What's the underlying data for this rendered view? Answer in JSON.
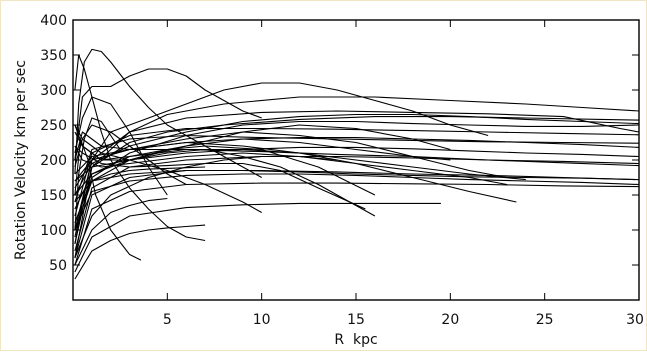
{
  "chart_data": {
    "type": "line",
    "title": "",
    "xlabel": "R  kpc",
    "ylabel": "Rotation Velocity km per sec",
    "xlim": [
      0,
      30
    ],
    "ylim": [
      0,
      400
    ],
    "xticks": [
      5,
      10,
      15,
      20,
      25,
      30
    ],
    "yticks": [
      50,
      100,
      150,
      200,
      250,
      300,
      350,
      400
    ],
    "grid": false,
    "legend": "none",
    "line_color": "#000000",
    "series": [
      {
        "x": [
          0.1,
          0.3,
          0.6,
          1.0,
          1.5,
          2.0,
          3.0,
          4.0,
          5.0,
          6.0,
          7.0,
          8.0,
          9.0,
          10.0
        ],
        "y": [
          180,
          280,
          340,
          358,
          355,
          340,
          305,
          275,
          250,
          235,
          220,
          205,
          190,
          175
        ]
      },
      {
        "x": [
          0.1,
          0.5,
          1.0,
          2.0,
          3.0,
          4.0,
          5.0,
          6.0,
          7.0,
          8.0,
          9.0,
          10.0
        ],
        "y": [
          200,
          290,
          305,
          305,
          320,
          330,
          330,
          320,
          300,
          285,
          270,
          260
        ]
      },
      {
        "x": [
          0.1,
          0.3,
          0.6,
          1.0,
          1.5,
          2.0,
          3.0,
          4.0,
          5.0,
          6.0,
          7.0
        ],
        "y": [
          300,
          350,
          330,
          290,
          240,
          200,
          160,
          130,
          105,
          90,
          85
        ]
      },
      {
        "x": [
          0.1,
          0.4,
          0.8,
          1.2,
          2.0,
          3.0,
          3.6
        ],
        "y": [
          150,
          230,
          200,
          150,
          100,
          65,
          57
        ]
      },
      {
        "x": [
          0.1,
          1.0,
          2.0,
          4.0,
          6.0,
          8.0,
          10.0,
          12.0,
          14.0,
          16.0,
          18.0,
          20.0,
          22.0
        ],
        "y": [
          100,
          200,
          240,
          260,
          280,
          300,
          310,
          310,
          300,
          285,
          270,
          250,
          235
        ]
      },
      {
        "x": [
          0.1,
          1.0,
          3.0,
          5.0,
          8.0,
          12.0,
          16.0,
          20.0,
          24.0,
          27.0,
          30.0
        ],
        "y": [
          60,
          190,
          240,
          265,
          280,
          290,
          290,
          285,
          280,
          275,
          270
        ]
      },
      {
        "x": [
          0.1,
          1.0,
          3.0,
          5.0,
          8.0,
          12.0,
          16.0,
          20.0,
          24.0,
          28.0,
          30.0
        ],
        "y": [
          80,
          190,
          225,
          240,
          250,
          258,
          262,
          262,
          260,
          258,
          257
        ]
      },
      {
        "x": [
          0.1,
          1.0,
          3.0,
          6.0,
          10.0,
          14.0,
          18.0,
          22.0,
          26.0,
          30.0
        ],
        "y": [
          120,
          210,
          235,
          245,
          245,
          244,
          242,
          240,
          238,
          236
        ]
      },
      {
        "x": [
          0.1,
          1.0,
          3.0,
          6.0,
          10.0,
          14.0,
          18.0,
          22.0,
          26.0,
          30.0
        ],
        "y": [
          140,
          215,
          230,
          235,
          232,
          230,
          228,
          226,
          225,
          224
        ]
      },
      {
        "x": [
          0.1,
          1.0,
          3.0,
          6.0,
          10.0,
          14.0,
          18.0,
          22.0,
          26.0,
          29.0,
          30.0
        ],
        "y": [
          90,
          200,
          240,
          260,
          268,
          270,
          268,
          266,
          262,
          245,
          240
        ]
      },
      {
        "x": [
          0.1,
          1.0,
          3.0,
          6.0,
          10.0,
          14.0,
          18.0,
          22.0,
          26.0,
          30.0
        ],
        "y": [
          70,
          160,
          190,
          200,
          205,
          205,
          203,
          200,
          198,
          195
        ]
      },
      {
        "x": [
          0.1,
          1.0,
          3.0,
          6.0,
          10.0,
          14.0,
          18.0,
          22.0,
          26.0,
          30.0
        ],
        "y": [
          60,
          150,
          175,
          185,
          185,
          183,
          180,
          178,
          175,
          172
        ]
      },
      {
        "x": [
          0.1,
          1.0,
          3.0,
          6.0,
          10.0,
          14.0,
          18.0,
          22.0,
          26.0,
          30.0
        ],
        "y": [
          50,
          130,
          155,
          165,
          167,
          167,
          166,
          165,
          163,
          162
        ]
      },
      {
        "x": [
          0.1,
          1.0,
          3.0,
          6.0,
          10.0,
          14.0,
          18.0,
          22.0,
          26.0,
          30.0
        ],
        "y": [
          180,
          205,
          215,
          215,
          212,
          208,
          205,
          200,
          196,
          192
        ]
      },
      {
        "x": [
          0.1,
          0.5,
          1.5,
          3.0,
          6.0,
          9.0,
          12.0,
          15.0,
          18.0,
          21.0,
          23.5
        ],
        "y": [
          200,
          240,
          220,
          215,
          225,
          220,
          210,
          195,
          175,
          155,
          140
        ]
      },
      {
        "x": [
          0.1,
          0.5,
          1.5,
          3.0,
          6.0,
          9.0,
          12.0,
          15.0,
          18.0,
          20.0
        ],
        "y": [
          250,
          220,
          200,
          205,
          220,
          230,
          225,
          215,
          205,
          200
        ]
      },
      {
        "x": [
          0.1,
          0.5,
          1.5,
          3.0,
          6.0,
          9.0,
          12.0,
          15.0,
          18.0,
          21.0,
          23.0
        ],
        "y": [
          220,
          200,
          190,
          195,
          205,
          210,
          205,
          195,
          185,
          175,
          165
        ]
      },
      {
        "x": [
          0.1,
          0.5,
          1.5,
          3.0,
          5.0,
          7.0,
          9.0,
          11.0,
          13.0,
          15.0,
          16.0
        ],
        "y": [
          240,
          220,
          200,
          200,
          210,
          215,
          205,
          190,
          165,
          135,
          120
        ]
      },
      {
        "x": [
          0.1,
          0.5,
          1.5,
          3.0,
          5.0,
          7.0,
          9.0,
          10.0
        ],
        "y": [
          250,
          230,
          210,
          200,
          185,
          165,
          140,
          125
        ]
      },
      {
        "x": [
          0.1,
          0.5,
          1.5,
          3.0,
          5.0,
          7.0,
          9.0,
          11.0,
          13.0,
          15.5
        ],
        "y": [
          220,
          210,
          195,
          190,
          192,
          195,
          195,
          185,
          160,
          130
        ]
      },
      {
        "x": [
          0.1,
          1.0,
          3.0,
          6.0,
          9.0,
          12.0,
          15.0,
          18.0,
          21.0,
          23.0
        ],
        "y": [
          170,
          200,
          215,
          230,
          240,
          235,
          225,
          205,
          185,
          175
        ]
      },
      {
        "x": [
          0.1,
          1.0,
          3.0,
          6.0,
          9.0,
          12.0,
          15.0,
          18.0,
          20.0
        ],
        "y": [
          150,
          180,
          200,
          220,
          240,
          250,
          245,
          230,
          215
        ]
      },
      {
        "x": [
          0.1,
          1.0,
          3.0,
          6.0,
          9.0,
          12.0,
          15.0,
          19.5
        ],
        "y": [
          40,
          90,
          120,
          132,
          136,
          138,
          138,
          138
        ]
      },
      {
        "x": [
          0.1,
          1.0,
          2.0,
          3.0,
          4.0,
          5.0,
          6.0,
          7.0
        ],
        "y": [
          30,
          70,
          85,
          95,
          100,
          103,
          105,
          107
        ]
      },
      {
        "x": [
          0.1,
          1.0,
          2.0,
          3.0,
          4.0,
          5.0
        ],
        "y": [
          50,
          100,
          125,
          135,
          142,
          145
        ]
      },
      {
        "x": [
          0.1,
          1.0,
          3.0,
          5.0,
          7.0,
          10.0,
          13.0,
          16.0
        ],
        "y": [
          100,
          170,
          200,
          215,
          220,
          215,
          190,
          150
        ]
      },
      {
        "x": [
          0.1,
          1.0,
          3.0,
          6.0,
          9.0,
          12.0,
          15.0,
          18.0,
          21.0,
          24.0
        ],
        "y": [
          130,
          180,
          205,
          215,
          215,
          210,
          200,
          190,
          180,
          172
        ]
      },
      {
        "x": [
          0.1,
          1.0,
          3.0,
          6.0,
          9.0,
          12.0,
          15.0,
          18.0,
          21.0,
          24.0,
          27.0,
          30.0
        ],
        "y": [
          110,
          175,
          210,
          235,
          250,
          255,
          255,
          252,
          250,
          248,
          248,
          250
        ]
      },
      {
        "x": [
          0.1,
          1.0,
          3.0,
          6.0,
          9.0,
          12.0,
          15.0,
          18.0,
          21.0,
          24.0,
          27.0,
          30.0
        ],
        "y": [
          160,
          200,
          215,
          225,
          230,
          232,
          232,
          230,
          228,
          225,
          222,
          218
        ]
      },
      {
        "x": [
          0.1,
          1.0,
          3.0,
          6.0,
          9.0,
          12.0,
          15.0,
          18.0,
          21.0,
          24.0,
          27.0,
          30.0
        ],
        "y": [
          140,
          170,
          180,
          185,
          185,
          183,
          180,
          178,
          176,
          175,
          174,
          172
        ]
      },
      {
        "x": [
          0.1,
          1.0,
          3.0,
          6.0,
          9.0,
          12.0,
          15.0,
          18.0,
          21.0,
          24.0,
          27.0,
          30.0
        ],
        "y": [
          170,
          190,
          200,
          210,
          215,
          218,
          218,
          216,
          213,
          210,
          208,
          205
        ]
      },
      {
        "x": [
          0.1,
          0.5,
          1.0,
          2.0,
          3.0,
          4.0,
          5.0
        ],
        "y": [
          210,
          260,
          290,
          280,
          240,
          190,
          150
        ]
      },
      {
        "x": [
          0.1,
          0.5,
          1.0,
          2.0,
          3.0,
          4.0,
          5.0,
          6.0
        ],
        "y": [
          190,
          230,
          250,
          240,
          220,
          200,
          180,
          165
        ]
      },
      {
        "x": [
          0.1,
          0.3,
          0.6,
          1.0,
          1.5,
          2.0,
          2.5
        ],
        "y": [
          100,
          180,
          230,
          260,
          255,
          235,
          215
        ]
      },
      {
        "x": [
          0.1,
          0.5,
          1.0,
          2.0,
          3.0,
          4.0,
          5.0,
          6.0,
          7.0
        ],
        "y": [
          80,
          140,
          170,
          180,
          185,
          187,
          188,
          189,
          190
        ]
      },
      {
        "x": [
          0.1,
          1.0,
          2.0,
          4.0,
          6.0,
          8.0,
          10.0,
          12.0,
          14.0
        ],
        "y": [
          60,
          120,
          150,
          175,
          190,
          200,
          205,
          205,
          200
        ]
      },
      {
        "x": [
          0.1,
          1.0,
          3.0,
          6.0,
          9.0,
          12.0,
          15.0,
          18.0,
          21.0,
          24.0,
          27.0,
          30.0
        ],
        "y": [
          150,
          195,
          220,
          240,
          255,
          262,
          265,
          265,
          262,
          258,
          255,
          252
        ]
      },
      {
        "x": [
          0.1,
          1.0,
          3.0,
          6.0,
          9.0,
          12.0,
          15.0,
          18.0,
          21.0,
          24.0,
          27.0,
          30.0
        ],
        "y": [
          100,
          155,
          170,
          178,
          180,
          180,
          178,
          175,
          172,
          170,
          168,
          165
        ]
      }
    ]
  }
}
